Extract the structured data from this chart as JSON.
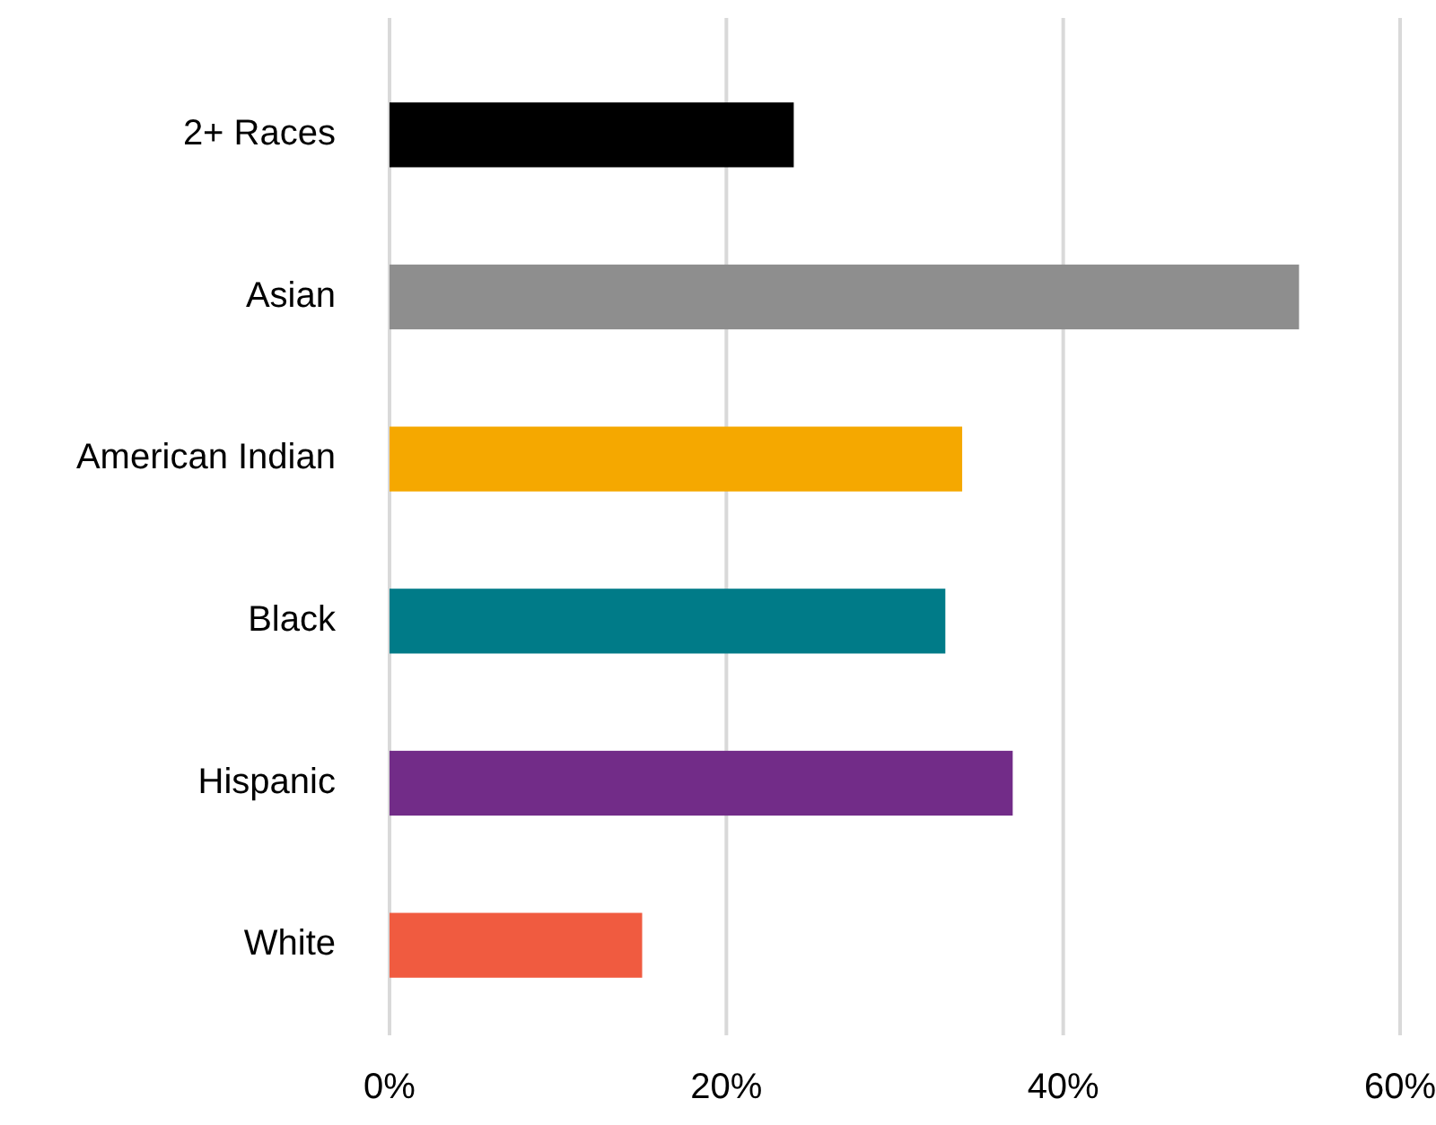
{
  "chart_data": {
    "type": "bar",
    "orientation": "horizontal",
    "categories": [
      "2+ Races",
      "Asian",
      "American Indian",
      "Black",
      "Hispanic",
      "White"
    ],
    "values": [
      24,
      54,
      34,
      33,
      37,
      15
    ],
    "colors": [
      "#000000",
      "#8e8e8e",
      "#f5a800",
      "#007b88",
      "#722c88",
      "#f05b40"
    ],
    "xlim": [
      0,
      60
    ],
    "xticks": [
      {
        "value": 0,
        "label": "0%"
      },
      {
        "value": 20,
        "label": "20%"
      },
      {
        "value": 40,
        "label": "40%"
      },
      {
        "value": 60,
        "label": "60%"
      }
    ],
    "grid": "x"
  }
}
